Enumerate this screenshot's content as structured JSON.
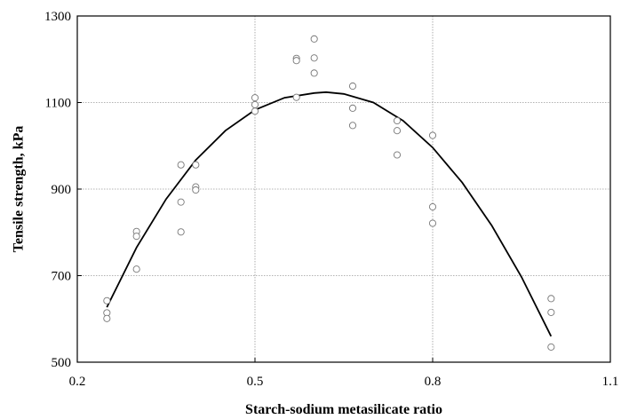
{
  "chart_data": {
    "type": "scatter",
    "xlabel": "Starch-sodium metasilicate ratio",
    "ylabel": "Tensile strength, kPa",
    "xlim": [
      0.2,
      1.1
    ],
    "ylim": [
      500,
      1300
    ],
    "x_ticks": [
      "0.2",
      "0.5",
      "0.8",
      "1.1"
    ],
    "y_ticks": [
      "500",
      "700",
      "900",
      "1100",
      "1300"
    ],
    "grid": true,
    "colors": {
      "points": "#777777",
      "curve": "#000000",
      "grid": "#9a9a9a"
    },
    "series": [
      {
        "points": [
          [
            0.25,
            642
          ],
          [
            0.25,
            614
          ],
          [
            0.25,
            601
          ],
          [
            0.3,
            802
          ],
          [
            0.3,
            791
          ],
          [
            0.3,
            715
          ],
          [
            0.375,
            956
          ],
          [
            0.375,
            870
          ],
          [
            0.375,
            801
          ],
          [
            0.4,
            956
          ],
          [
            0.4,
            905
          ],
          [
            0.4,
            898
          ],
          [
            0.5,
            1111
          ],
          [
            0.5,
            1095
          ],
          [
            0.5,
            1080
          ],
          [
            0.57,
            1202
          ],
          [
            0.57,
            1197
          ],
          [
            0.57,
            1112
          ],
          [
            0.6,
            1247
          ],
          [
            0.6,
            1203
          ],
          [
            0.6,
            1168
          ],
          [
            0.665,
            1138
          ],
          [
            0.665,
            1087
          ],
          [
            0.665,
            1047
          ],
          [
            0.74,
            1058
          ],
          [
            0.74,
            1035
          ],
          [
            0.74,
            979
          ],
          [
            0.8,
            1024
          ],
          [
            0.8,
            859
          ],
          [
            0.8,
            821
          ],
          [
            1.0,
            647
          ],
          [
            1.0,
            615
          ],
          [
            1.0,
            535
          ]
        ]
      },
      {
        "type": "line",
        "x": [
          0.25,
          0.3,
          0.35,
          0.4,
          0.45,
          0.5,
          0.55,
          0.6,
          0.62,
          0.65,
          0.7,
          0.75,
          0.8,
          0.85,
          0.9,
          0.95,
          1.0
        ],
        "y": [
          627,
          765,
          877,
          967,
          1035,
          1083,
          1111,
          1122,
          1124,
          1120,
          1100,
          1058,
          996,
          915,
          815,
          697,
          560
        ]
      }
    ]
  }
}
